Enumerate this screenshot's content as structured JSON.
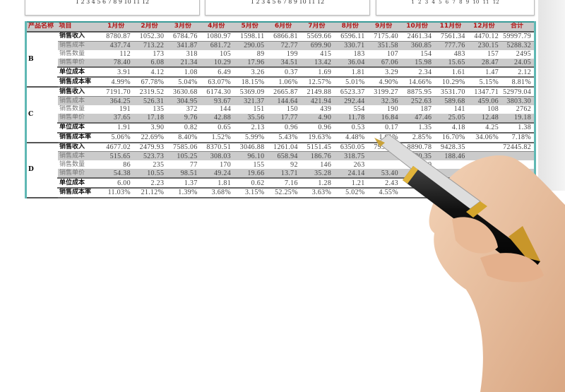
{
  "chart_axis_labels": [
    "1",
    "2",
    "3",
    "4",
    "5",
    "6",
    "7",
    "8",
    "9",
    "10",
    "11",
    "12"
  ],
  "table": {
    "headers": [
      "产品名称",
      "项目",
      "1月份",
      "2月份",
      "3月份",
      "4月份",
      "5月份",
      "6月份",
      "7月份",
      "8月份",
      "9月份",
      "10月份",
      "11月份",
      "12月份",
      "合计"
    ],
    "items": [
      "销售收入",
      "销售成本",
      "销售数量",
      "销售单价",
      "单位成本",
      "销售成本率"
    ],
    "products": [
      {
        "name": "B",
        "rows": [
          [
            "8780.87",
            "1052.30",
            "6784.76",
            "1080.97",
            "1598.11",
            "6866.81",
            "5569.66",
            "6596.11",
            "7175.40",
            "2461.34",
            "7561.34",
            "4470.12",
            "59997.79"
          ],
          [
            "437.74",
            "713.22",
            "341.87",
            "681.72",
            "290.05",
            "72.77",
            "699.90",
            "330.71",
            "351.58",
            "360.85",
            "777.76",
            "230.15",
            "5288.32"
          ],
          [
            "112",
            "173",
            "318",
            "105",
            "89",
            "199",
            "415",
            "183",
            "107",
            "154",
            "483",
            "157",
            "2495"
          ],
          [
            "78.40",
            "6.08",
            "21.34",
            "10.29",
            "17.96",
            "34.51",
            "13.42",
            "36.04",
            "67.06",
            "15.98",
            "15.65",
            "28.47",
            "24.05"
          ],
          [
            "3.91",
            "4.12",
            "1.08",
            "6.49",
            "3.26",
            "0.37",
            "1.69",
            "1.81",
            "3.29",
            "2.34",
            "1.61",
            "1.47",
            "2.12"
          ],
          [
            "4.99%",
            "67.78%",
            "5.04%",
            "63.07%",
            "18.15%",
            "1.06%",
            "12.57%",
            "5.01%",
            "4.90%",
            "14.66%",
            "10.29%",
            "5.15%",
            "8.81%"
          ]
        ]
      },
      {
        "name": "C",
        "rows": [
          [
            "7191.70",
            "2319.52",
            "3630.68",
            "6174.30",
            "5369.09",
            "2665.87",
            "2149.88",
            "6523.37",
            "3199.27",
            "8875.95",
            "3531.70",
            "1347.71",
            "52979.04"
          ],
          [
            "364.25",
            "526.31",
            "304.95",
            "93.67",
            "321.37",
            "144.64",
            "421.94",
            "292.44",
            "32.36",
            "252.63",
            "589.68",
            "459.06",
            "3803.30"
          ],
          [
            "191",
            "135",
            "372",
            "144",
            "151",
            "150",
            "439",
            "554",
            "190",
            "187",
            "141",
            "108",
            "2762"
          ],
          [
            "37.65",
            "17.18",
            "9.76",
            "42.88",
            "35.56",
            "17.77",
            "4.90",
            "11.78",
            "16.84",
            "47.46",
            "25.05",
            "12.48",
            "19.18"
          ],
          [
            "1.91",
            "3.90",
            "0.82",
            "0.65",
            "2.13",
            "0.96",
            "0.96",
            "0.53",
            "0.17",
            "1.35",
            "4.18",
            "4.25",
            "1.38"
          ],
          [
            "5.06%",
            "22.69%",
            "8.40%",
            "1.52%",
            "5.99%",
            "5.43%",
            "19.63%",
            "4.48%",
            "1.01%",
            "2.85%",
            "16.70%",
            "34.06%",
            "7.18%"
          ]
        ]
      },
      {
        "name": "D",
        "rows": [
          [
            "4677.02",
            "2479.93",
            "7585.06",
            "8370.51",
            "3046.88",
            "1261.04",
            "5151.45",
            "6350.05",
            "7957.02",
            "8890.78",
            "9428.35",
            "",
            "72445.82"
          ],
          [
            "515.65",
            "523.73",
            "105.25",
            "308.03",
            "96.10",
            "658.94",
            "186.76",
            "318.75",
            "",
            "330.35",
            "188.46",
            "",
            ""
          ],
          [
            "86",
            "235",
            "77",
            "170",
            "155",
            "92",
            "146",
            "263",
            "",
            "100",
            "",
            "",
            ""
          ],
          [
            "54.38",
            "10.55",
            "98.51",
            "49.24",
            "19.66",
            "13.71",
            "35.28",
            "24.14",
            "53.40",
            "",
            "",
            "",
            ""
          ],
          [
            "6.00",
            "2.23",
            "1.37",
            "1.81",
            "0.62",
            "7.16",
            "1.28",
            "1.21",
            "2.43",
            "",
            "",
            "",
            ""
          ],
          [
            "11.03%",
            "21.12%",
            "1.39%",
            "3.68%",
            "3.15%",
            "52.25%",
            "3.63%",
            "5.02%",
            "4.55%",
            "",
            "",
            "",
            ""
          ]
        ]
      }
    ]
  },
  "colors": {
    "header_text": "#b01515",
    "border_accent": "#5fb8b4",
    "shaded_row": "#cbcbcb"
  }
}
